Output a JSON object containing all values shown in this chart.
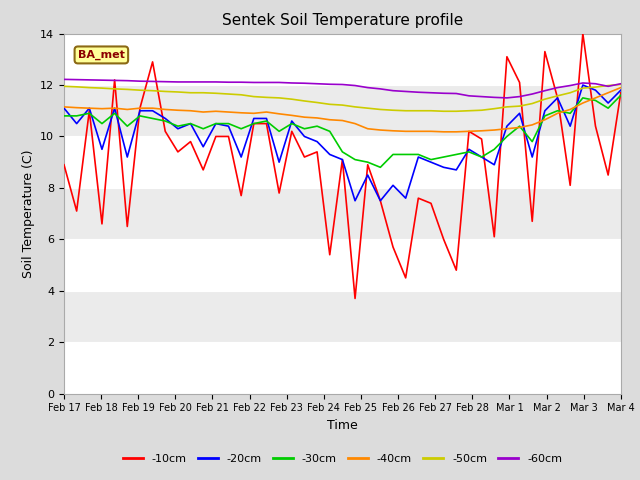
{
  "title": "Sentek Soil Temperature profile",
  "xlabel": "Time",
  "ylabel": "Soil Temperature (C)",
  "ylim": [
    0,
    14
  ],
  "yticks": [
    0,
    2,
    4,
    6,
    8,
    10,
    12,
    14
  ],
  "annotation_text": "BA_met",
  "annotation_color": "#8B0000",
  "annotation_bg": "#FFFF99",
  "bg_color": "#DCDCDC",
  "plot_bg_color": "#E8E8E8",
  "band_colors": [
    "#F0F0F0",
    "#E0E0E0"
  ],
  "grid_color": "#FFFFFF",
  "x_labels": [
    "Feb 17",
    "Feb 18",
    "Feb 19",
    "Feb 20",
    "Feb 21",
    "Feb 22",
    "Feb 23",
    "Feb 24",
    "Feb 25",
    "Feb 26",
    "Feb 27",
    "Feb 28",
    "Mar 1",
    "Mar 2",
    "Mar 3",
    "Mar 4"
  ],
  "series_order": [
    "-10cm",
    "-20cm",
    "-30cm",
    "-40cm",
    "-50cm",
    "-60cm"
  ],
  "series": {
    "-10cm": {
      "color": "#FF0000",
      "data": [
        8.9,
        7.1,
        11.0,
        6.6,
        12.2,
        6.5,
        11.1,
        12.9,
        10.2,
        9.4,
        9.8,
        8.7,
        10.0,
        10.0,
        7.7,
        10.5,
        10.5,
        7.8,
        10.2,
        9.2,
        9.4,
        5.4,
        9.1,
        3.7,
        8.9,
        7.5,
        5.7,
        4.5,
        7.6,
        7.4,
        6.0,
        4.8,
        10.2,
        9.9,
        6.1,
        13.1,
        12.1,
        6.7,
        13.3,
        11.5,
        8.1,
        14.0,
        10.4,
        8.5,
        11.7
      ]
    },
    "-20cm": {
      "color": "#0000FF",
      "data": [
        11.1,
        10.5,
        11.1,
        9.5,
        11.1,
        9.2,
        11.0,
        11.0,
        10.7,
        10.3,
        10.5,
        9.6,
        10.5,
        10.4,
        9.2,
        10.7,
        10.7,
        9.0,
        10.6,
        10.0,
        9.8,
        9.3,
        9.1,
        7.5,
        8.5,
        7.5,
        8.1,
        7.6,
        9.2,
        9.0,
        8.8,
        8.7,
        9.5,
        9.2,
        8.9,
        10.4,
        10.9,
        9.2,
        11.0,
        11.5,
        10.4,
        12.0,
        11.8,
        11.3,
        11.8
      ]
    },
    "-30cm": {
      "color": "#00CC00",
      "data": [
        10.8,
        10.8,
        10.9,
        10.5,
        10.9,
        10.4,
        10.8,
        10.7,
        10.6,
        10.4,
        10.5,
        10.3,
        10.5,
        10.5,
        10.3,
        10.5,
        10.6,
        10.2,
        10.5,
        10.3,
        10.4,
        10.2,
        9.4,
        9.1,
        9.0,
        8.8,
        9.3,
        9.3,
        9.3,
        9.1,
        9.2,
        9.3,
        9.4,
        9.2,
        9.5,
        10.0,
        10.4,
        9.8,
        10.8,
        11.0,
        10.9,
        11.5,
        11.4,
        11.1,
        11.6
      ]
    },
    "-40cm": {
      "color": "#FF8800",
      "data": [
        11.15,
        11.12,
        11.1,
        11.08,
        11.1,
        11.05,
        11.1,
        11.1,
        11.05,
        11.02,
        11.0,
        10.95,
        10.98,
        10.95,
        10.92,
        10.9,
        10.95,
        10.88,
        10.82,
        10.75,
        10.72,
        10.65,
        10.62,
        10.5,
        10.3,
        10.25,
        10.22,
        10.2,
        10.2,
        10.2,
        10.18,
        10.18,
        10.2,
        10.22,
        10.25,
        10.3,
        10.35,
        10.45,
        10.65,
        10.9,
        11.05,
        11.3,
        11.5,
        11.7,
        11.9
      ]
    },
    "-50cm": {
      "color": "#CCCC00",
      "data": [
        11.95,
        11.93,
        11.9,
        11.88,
        11.85,
        11.83,
        11.8,
        11.78,
        11.75,
        11.73,
        11.7,
        11.7,
        11.68,
        11.65,
        11.62,
        11.55,
        11.52,
        11.5,
        11.45,
        11.38,
        11.32,
        11.25,
        11.22,
        11.15,
        11.1,
        11.05,
        11.02,
        11.0,
        11.0,
        11.0,
        10.98,
        10.98,
        11.0,
        11.02,
        11.08,
        11.15,
        11.18,
        11.28,
        11.45,
        11.58,
        11.7,
        11.88,
        11.92,
        11.98,
        12.02
      ]
    },
    "-60cm": {
      "color": "#9900CC",
      "data": [
        12.22,
        12.21,
        12.2,
        12.19,
        12.18,
        12.17,
        12.15,
        12.14,
        12.13,
        12.12,
        12.12,
        12.12,
        12.12,
        12.11,
        12.11,
        12.1,
        12.1,
        12.1,
        12.08,
        12.07,
        12.05,
        12.03,
        12.02,
        11.98,
        11.9,
        11.85,
        11.78,
        11.75,
        11.72,
        11.7,
        11.68,
        11.67,
        11.58,
        11.55,
        11.52,
        11.5,
        11.55,
        11.65,
        11.78,
        11.9,
        11.98,
        12.08,
        12.05,
        11.95,
        12.05
      ]
    }
  }
}
